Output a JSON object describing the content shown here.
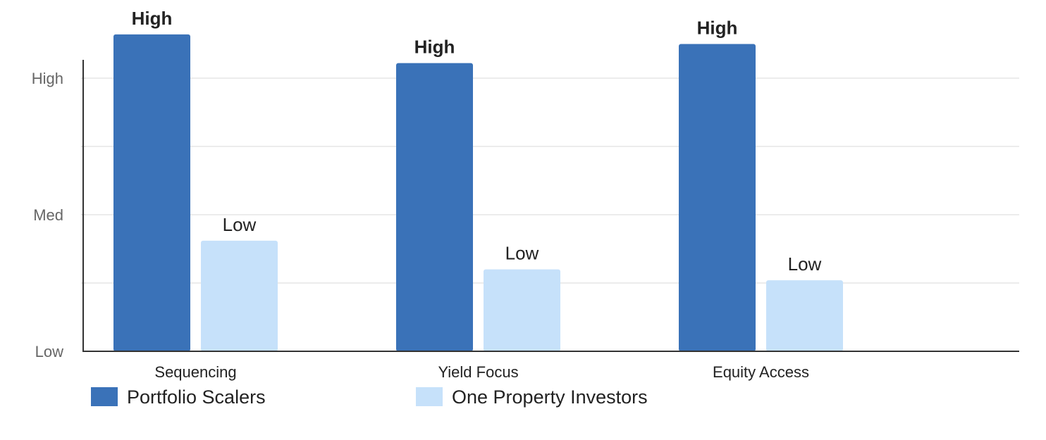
{
  "chart_data": {
    "type": "bar",
    "title": "",
    "xlabel": "",
    "ylabel": "",
    "categories": [
      "Sequencing",
      "Yield Focus",
      "Equity Access"
    ],
    "y_ticks": [
      {
        "label": "Low",
        "value": 0
      },
      {
        "label": "Med",
        "value": 1
      },
      {
        "label": "High",
        "value": 2
      }
    ],
    "ylim": [
      0,
      2.65
    ],
    "grid": true,
    "legend_position": "bottom-left",
    "series": [
      {
        "name": "Portfolio Scalers",
        "color": "#3a72b8",
        "values": [
          2.32,
          2.11,
          2.25
        ],
        "labels": [
          "High",
          "High",
          "High"
        ],
        "label_bold": true
      },
      {
        "name": "One Property Investors",
        "color": "#c6e1fa",
        "values": [
          0.81,
          0.6,
          0.52
        ],
        "labels": [
          "Low",
          "Low",
          "Low"
        ],
        "label_bold": false
      }
    ]
  }
}
